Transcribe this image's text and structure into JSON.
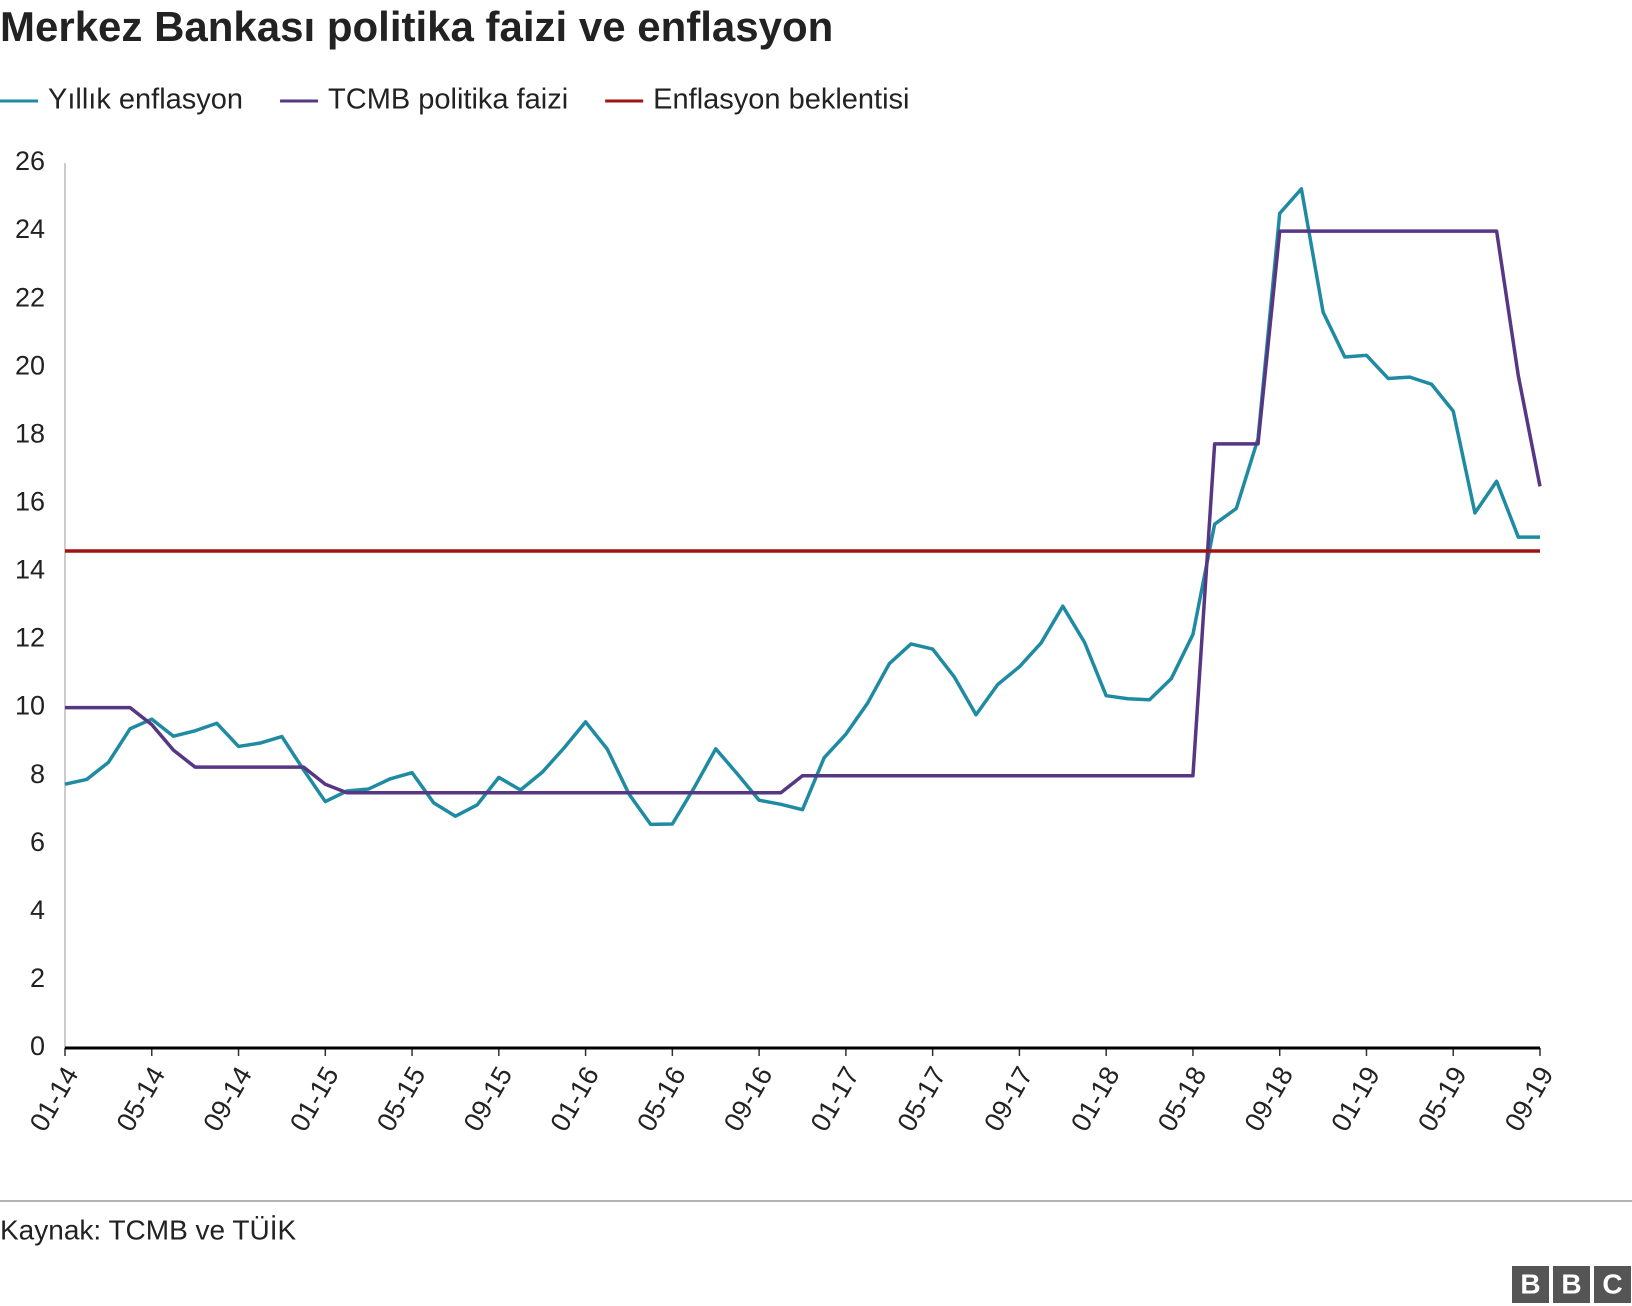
{
  "chart_data": {
    "type": "line",
    "title": "Merkez Bankası politika faizi ve enflasyon",
    "source": "Kaynak: TCMB ve TÜİK",
    "logo": [
      "B",
      "B",
      "C"
    ],
    "categories": [
      "01-14",
      null,
      null,
      null,
      "05-14",
      null,
      null,
      null,
      "09-14",
      null,
      null,
      null,
      "01-15",
      null,
      null,
      null,
      "05-15",
      null,
      null,
      null,
      "09-15",
      null,
      null,
      null,
      "01-16",
      null,
      null,
      null,
      "05-16",
      null,
      null,
      null,
      "09-16",
      null,
      null,
      null,
      "01-17",
      null,
      null,
      null,
      "05-17",
      null,
      null,
      null,
      "09-17",
      null,
      null,
      null,
      "01-18",
      null,
      null,
      null,
      "05-18",
      null,
      null,
      null,
      "09-18",
      null,
      null,
      null,
      "01-19",
      null,
      null,
      null,
      "05-19",
      null,
      null,
      null,
      "09-19"
    ],
    "series": [
      {
        "name": "Yıllık enflasyon",
        "color": "#1f8ba3",
        "values": [
          7.75,
          7.89,
          8.39,
          9.38,
          9.66,
          9.16,
          9.32,
          9.54,
          8.86,
          8.96,
          9.15,
          8.17,
          7.24,
          7.55,
          7.61,
          7.91,
          8.09,
          7.2,
          6.81,
          7.14,
          7.95,
          7.58,
          8.1,
          8.81,
          9.58,
          8.78,
          7.46,
          6.57,
          6.58,
          7.64,
          8.79,
          8.05,
          7.28,
          7.16,
          7.0,
          8.53,
          9.22,
          10.13,
          11.29,
          11.87,
          11.72,
          10.9,
          9.79,
          10.68,
          11.2,
          11.9,
          12.98,
          11.92,
          10.35,
          10.26,
          10.23,
          10.85,
          12.15,
          15.39,
          15.85,
          17.9,
          24.52,
          25.24,
          21.62,
          20.3,
          20.35,
          19.67,
          19.71,
          19.5,
          18.71,
          15.72,
          16.65,
          15.01,
          15.01
        ]
      },
      {
        "name": "TCMB politika faizi",
        "color": "#573783",
        "values": [
          10,
          10,
          10,
          10,
          9.5,
          8.75,
          8.25,
          8.25,
          8.25,
          8.25,
          8.25,
          8.25,
          7.75,
          7.5,
          7.5,
          7.5,
          7.5,
          7.5,
          7.5,
          7.5,
          7.5,
          7.5,
          7.5,
          7.5,
          7.5,
          7.5,
          7.5,
          7.5,
          7.5,
          7.5,
          7.5,
          7.5,
          7.5,
          7.5,
          8,
          8,
          8,
          8,
          8,
          8,
          8,
          8,
          8,
          8,
          8,
          8,
          8,
          8,
          8,
          8,
          8,
          8,
          8,
          17.75,
          17.75,
          17.75,
          24,
          24,
          24,
          24,
          24,
          24,
          24,
          24,
          24,
          24,
          24,
          19.75,
          16.5
        ]
      },
      {
        "name": "Enflasyon beklentisi",
        "color": "#a11212",
        "values": [
          14.6,
          14.6,
          14.6,
          14.6,
          14.6,
          14.6,
          14.6,
          14.6,
          14.6,
          14.6,
          14.6,
          14.6,
          14.6,
          14.6,
          14.6,
          14.6,
          14.6,
          14.6,
          14.6,
          14.6,
          14.6,
          14.6,
          14.6,
          14.6,
          14.6,
          14.6,
          14.6,
          14.6,
          14.6,
          14.6,
          14.6,
          14.6,
          14.6,
          14.6,
          14.6,
          14.6,
          14.6,
          14.6,
          14.6,
          14.6,
          14.6,
          14.6,
          14.6,
          14.6,
          14.6,
          14.6,
          14.6,
          14.6,
          14.6,
          14.6,
          14.6,
          14.6,
          14.6,
          14.6,
          14.6,
          14.6,
          14.6,
          14.6,
          14.6,
          14.6,
          14.6,
          14.6,
          14.6,
          14.6,
          14.6,
          14.6,
          14.6,
          14.6,
          14.6
        ]
      }
    ],
    "ylim": [
      0,
      26
    ],
    "yticks": [
      0,
      2,
      4,
      6,
      8,
      10,
      12,
      14,
      16,
      18,
      20,
      22,
      24,
      26
    ],
    "grid": false,
    "legend": "top"
  }
}
